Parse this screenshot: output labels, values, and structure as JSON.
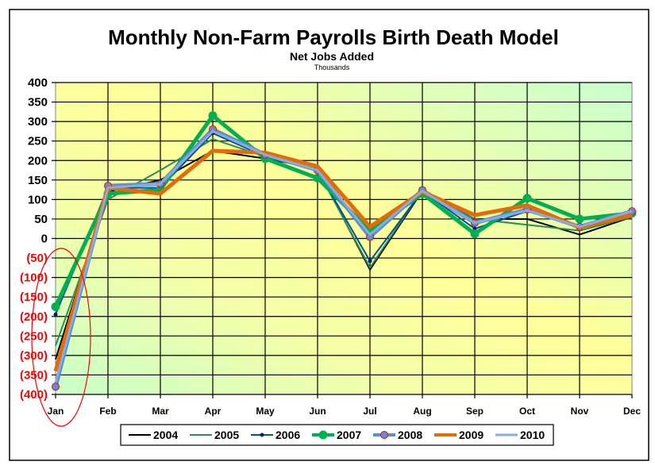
{
  "chart_data": {
    "type": "line",
    "title": "Monthly Non-Farm Payrolls Birth Death Model",
    "subtitle": "Net Jobs Added",
    "unit_label": "Thousands",
    "categories": [
      "Jan",
      "Feb",
      "Mar",
      "Apr",
      "May",
      "Jun",
      "Jul",
      "Aug",
      "Sep",
      "Oct",
      "Nov",
      "Dec"
    ],
    "ylim": [
      -400,
      400
    ],
    "yticks": [
      400,
      350,
      300,
      250,
      200,
      150,
      100,
      50,
      0,
      -50,
      -100,
      -150,
      -200,
      -250,
      -300,
      -350,
      -400
    ],
    "ytick_labels": [
      "400",
      "350",
      "300",
      "250",
      "200",
      "150",
      "100",
      "50",
      "0",
      "(50)",
      "(100)",
      "(150)",
      "(200)",
      "(250)",
      "(300)",
      "(350)",
      "(400)"
    ],
    "grid": true,
    "legend_position": "bottom",
    "negative_label_color": "#ff0000",
    "series": [
      {
        "name": "2004",
        "color": "#000000",
        "width": 2,
        "marker": "none",
        "values": [
          -310,
          120,
          150,
          225,
          205,
          180,
          -80,
          122,
          50,
          50,
          10,
          55
        ]
      },
      {
        "name": "2005",
        "color": "#2e8b57",
        "width": 2,
        "marker": "none",
        "values": [
          -275,
          100,
          175,
          255,
          210,
          175,
          -75,
          125,
          50,
          35,
          20,
          55
        ]
      },
      {
        "name": "2006",
        "color": "#0050a0",
        "width": 2,
        "marker": "dot",
        "values": [
          -195,
          130,
          130,
          270,
          210,
          175,
          -58,
          122,
          25,
          70,
          30,
          60
        ]
      },
      {
        "name": "2007",
        "color": "#00b050",
        "width": 5,
        "marker": "big-dot",
        "values": [
          -175,
          115,
          125,
          315,
          205,
          155,
          20,
          115,
          12,
          103,
          50,
          65
        ]
      },
      {
        "name": "2008",
        "color": "#5b8fd6",
        "width": 5,
        "marker": "red-ring",
        "values": [
          -380,
          135,
          140,
          280,
          215,
          175,
          4,
          124,
          40,
          74,
          30,
          70
        ]
      },
      {
        "name": "2009",
        "color": "#e36c09",
        "width": 5,
        "marker": "none",
        "values": [
          -340,
          130,
          115,
          225,
          220,
          185,
          30,
          120,
          60,
          85,
          28,
          60
        ]
      },
      {
        "name": "2010",
        "color": "#8ea9db",
        "width": 3,
        "marker": "none",
        "values": [
          -370,
          130,
          140,
          275,
          215,
          175,
          10,
          122,
          40,
          72,
          30,
          70
        ]
      }
    ]
  }
}
